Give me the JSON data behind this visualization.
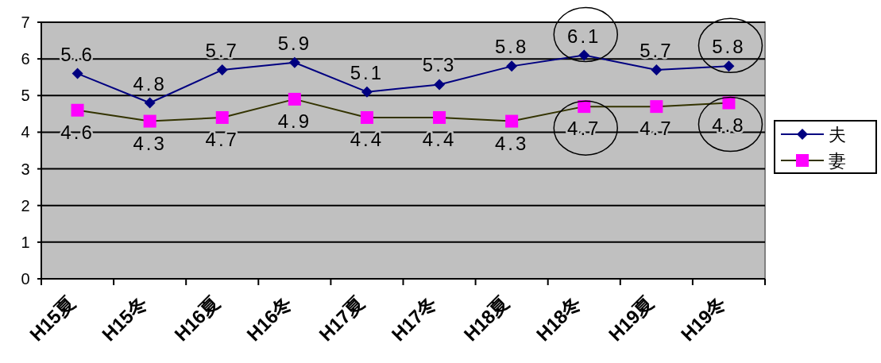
{
  "chart_data": {
    "type": "line",
    "categories": [
      "H15夏",
      "H15冬",
      "H16夏",
      "H16冬",
      "H17夏",
      "H17冬",
      "H18夏",
      "H18冬",
      "H19夏",
      "H19冬"
    ],
    "series": [
      {
        "name": "夫",
        "color": "#000080",
        "marker": "diamond",
        "values": [
          5.6,
          4.8,
          5.7,
          5.9,
          5.1,
          5.3,
          5.8,
          6.1,
          5.7,
          5.8
        ],
        "value_labels": [
          "5.6",
          "4.8",
          "5.7",
          "5.9",
          "5.1",
          "5.3",
          "5.8",
          "6.1",
          "5.7",
          "5.8"
        ]
      },
      {
        "name": "妻",
        "color": "#333300",
        "marker": "square",
        "values": [
          4.6,
          4.3,
          4.4,
          4.9,
          4.4,
          4.4,
          4.3,
          4.7,
          4.7,
          4.8
        ],
        "value_labels": [
          "4.6",
          "4.3",
          null,
          "4.9",
          "4.4",
          "4.4",
          "4.3",
          "4.7",
          "4.7",
          "4.8"
        ]
      }
    ],
    "annotations": [
      {
        "text": "4.7",
        "x": "H16夏",
        "y": 4.4
      }
    ],
    "ylim": [
      0,
      7
    ],
    "yticks": [
      0,
      1,
      2,
      3,
      4,
      5,
      6,
      7
    ],
    "grid": "y",
    "legend": "right"
  }
}
